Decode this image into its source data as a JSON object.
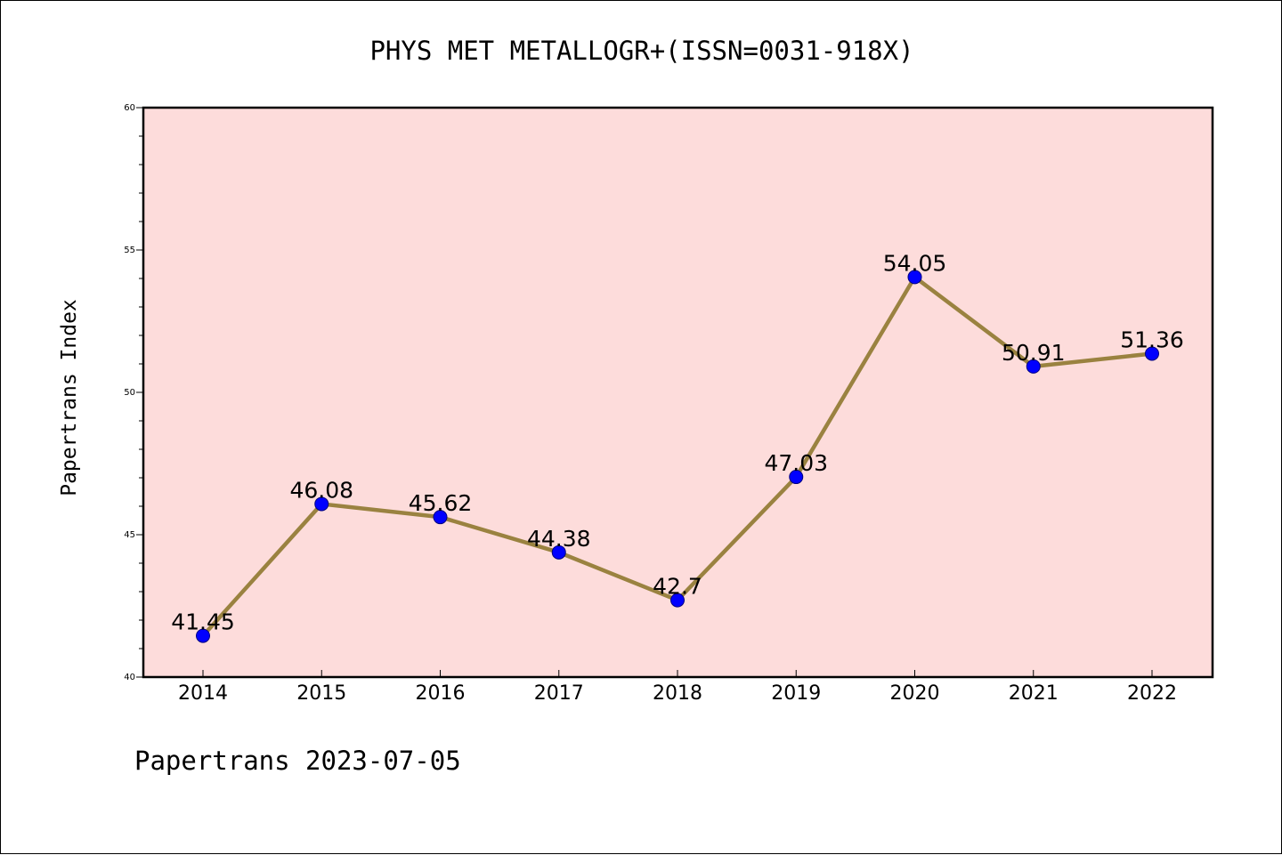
{
  "chart_data": {
    "type": "line",
    "title": "PHYS MET METALLOGR+(ISSN=0031-918X)",
    "xlabel": "",
    "ylabel": "Papertrans Index",
    "footer": "Papertrans 2023-07-05",
    "categories": [
      "2014",
      "2015",
      "2016",
      "2017",
      "2018",
      "2019",
      "2020",
      "2021",
      "2022"
    ],
    "values": [
      41.45,
      46.08,
      45.62,
      44.38,
      42.7,
      47.03,
      54.05,
      50.91,
      51.36
    ],
    "data_labels": [
      "41.45",
      "46.08",
      "45.62",
      "44.38",
      "42.7",
      "47.03",
      "54.05",
      "50.91",
      "51.36"
    ],
    "ylim": [
      40,
      60
    ],
    "yticks": [
      40,
      45,
      50,
      55,
      60
    ],
    "grid": false,
    "colors": {
      "plot_background": "#fddcdb",
      "line": "#9a8240",
      "marker": "#0000ff",
      "marker_edge": "#00007f",
      "axis": "#000000"
    }
  }
}
